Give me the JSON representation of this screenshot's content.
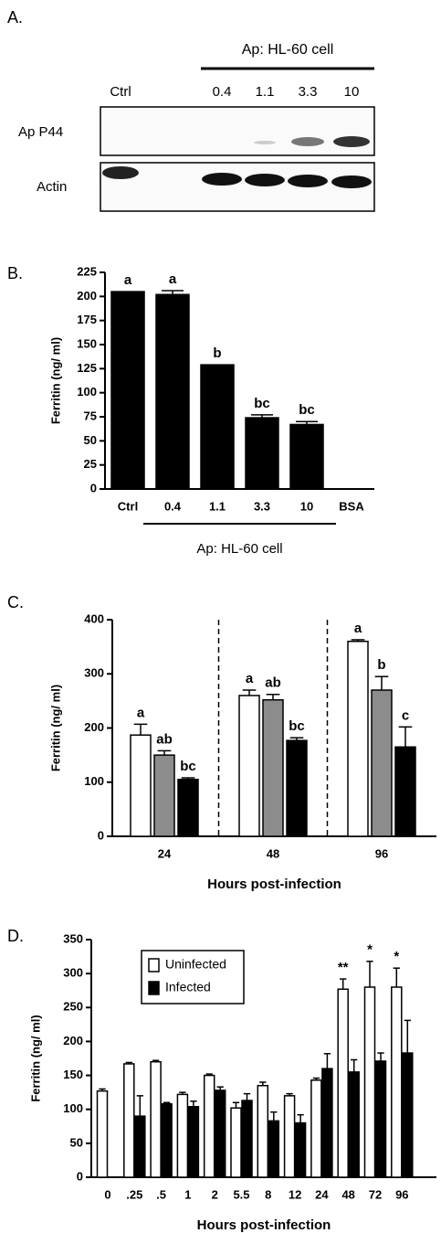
{
  "blot": {
    "panel_label": "A.",
    "group_label": "Ap: HL-60 cell",
    "lanes": [
      "Ctrl",
      "0.4",
      "1.1",
      "3.3",
      "10"
    ],
    "rows": [
      "Ap P44",
      "Actin"
    ]
  },
  "chart_data": [
    {
      "type": "bar",
      "panel_label": "B.",
      "y_label": "Ferritin (ng/ ml)",
      "x_label": "Ap: HL-60 cell",
      "group_bracket": true,
      "categories": [
        "Ctrl",
        "0.4",
        "1.1",
        "3.3",
        "10",
        "BSA"
      ],
      "series": [
        {
          "color": "#000000",
          "values": [
            205,
            202,
            129,
            74,
            67,
            0
          ],
          "errors": [
            null,
            4,
            null,
            3,
            3,
            null
          ],
          "letters": [
            "a",
            "a",
            "b",
            "bc",
            "bc",
            null
          ]
        }
      ],
      "ylim": [
        0,
        225
      ],
      "yticks": [
        0,
        25,
        50,
        75,
        100,
        125,
        150,
        175,
        200,
        225
      ]
    },
    {
      "type": "bar",
      "panel_label": "C.",
      "y_label": "Ferritin (ng/ ml)",
      "x_label": "Hours post-infection",
      "group_dividers": true,
      "categories": [
        "24",
        "48",
        "96"
      ],
      "series": [
        {
          "color": "#ffffff",
          "values": [
            187,
            260,
            360
          ],
          "errors": [
            20,
            10,
            3
          ],
          "letters": [
            "a",
            "a",
            "a"
          ]
        },
        {
          "color": "#8c8c8c",
          "values": [
            150,
            252,
            270
          ],
          "errors": [
            8,
            10,
            25
          ],
          "letters": [
            "ab",
            "ab",
            "b"
          ]
        },
        {
          "color": "#000000",
          "values": [
            105,
            177,
            165
          ],
          "errors": [
            3,
            5,
            37
          ],
          "letters": [
            "bc",
            "bc",
            "c"
          ]
        }
      ],
      "ylim": [
        0,
        400
      ],
      "yticks": [
        0,
        100,
        200,
        300,
        400
      ]
    },
    {
      "type": "bar",
      "panel_label": "D.",
      "y_label": "Ferritin (ng/ ml)",
      "x_label": "Hours post-infection",
      "legend": "upper left",
      "categories": [
        "0",
        ".25",
        ".5",
        "1",
        "2",
        "5.5",
        "8",
        "12",
        "24",
        "48",
        "72",
        "96"
      ],
      "series": [
        {
          "name": "Uninfected",
          "color": "#ffffff",
          "values": [
            127,
            167,
            170,
            122,
            150,
            102,
            135,
            120,
            143,
            277,
            280,
            280
          ],
          "errors": [
            3,
            2,
            2,
            3,
            2,
            8,
            5,
            3,
            3,
            15,
            38,
            28
          ],
          "letters": [
            null,
            null,
            null,
            null,
            null,
            null,
            null,
            null,
            null,
            "**",
            "*",
            "*"
          ]
        },
        {
          "name": "Infected",
          "color": "#000000",
          "values": [
            null,
            90,
            108,
            104,
            128,
            113,
            83,
            80,
            160,
            155,
            171,
            183
          ],
          "errors": [
            null,
            30,
            2,
            8,
            5,
            10,
            13,
            12,
            22,
            18,
            12,
            48
          ]
        }
      ],
      "ylim": [
        0,
        350
      ],
      "yticks": [
        0,
        50,
        100,
        150,
        200,
        250,
        300,
        350
      ]
    }
  ]
}
